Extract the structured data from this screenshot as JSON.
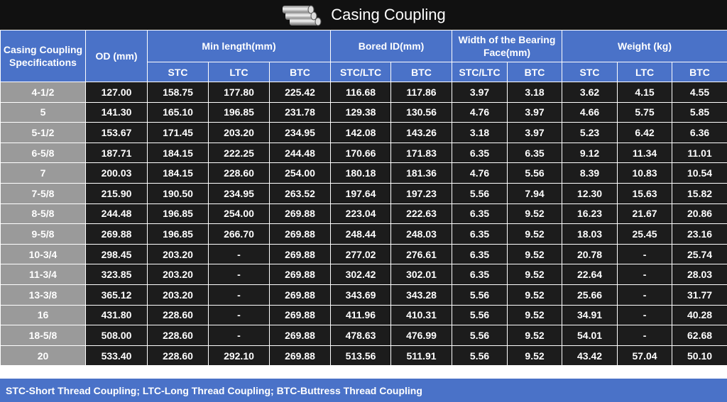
{
  "title": "Casing Coupling",
  "table": {
    "header_top": [
      "Casing Coupling Specifications",
      "OD (mm)",
      "Min length(mm)",
      "Bored ID(mm)",
      "Width of the Bearing Face(mm)",
      "Weight (kg)"
    ],
    "header_sub": [
      "STC",
      "LTC",
      "BTC",
      "STC/LTC",
      "BTC",
      "STC/LTC",
      "BTC",
      "STC",
      "LTC",
      "BTC"
    ],
    "rows": [
      [
        "4-1/2",
        "127.00",
        "158.75",
        "177.80",
        "225.42",
        "116.68",
        "117.86",
        "3.97",
        "3.18",
        "3.62",
        "4.15",
        "4.55"
      ],
      [
        "5",
        "141.30",
        "165.10",
        "196.85",
        "231.78",
        "129.38",
        "130.56",
        "4.76",
        "3.97",
        "4.66",
        "5.75",
        "5.85"
      ],
      [
        "5-1/2",
        "153.67",
        "171.45",
        "203.20",
        "234.95",
        "142.08",
        "143.26",
        "3.18",
        "3.97",
        "5.23",
        "6.42",
        "6.36"
      ],
      [
        "6-5/8",
        "187.71",
        "184.15",
        "222.25",
        "244.48",
        "170.66",
        "171.83",
        "6.35",
        "6.35",
        "9.12",
        "11.34",
        "11.01"
      ],
      [
        "7",
        "200.03",
        "184.15",
        "228.60",
        "254.00",
        "180.18",
        "181.36",
        "4.76",
        "5.56",
        "8.39",
        "10.83",
        "10.54"
      ],
      [
        "7-5/8",
        "215.90",
        "190.50",
        "234.95",
        "263.52",
        "197.64",
        "197.23",
        "5.56",
        "7.94",
        "12.30",
        "15.63",
        "15.82"
      ],
      [
        "8-5/8",
        "244.48",
        "196.85",
        "254.00",
        "269.88",
        "223.04",
        "222.63",
        "6.35",
        "9.52",
        "16.23",
        "21.67",
        "20.86"
      ],
      [
        "9-5/8",
        "269.88",
        "196.85",
        "266.70",
        "269.88",
        "248.44",
        "248.03",
        "6.35",
        "9.52",
        "18.03",
        "25.45",
        "23.16"
      ],
      [
        "10-3/4",
        "298.45",
        "203.20",
        "-",
        "269.88",
        "277.02",
        "276.61",
        "6.35",
        "9.52",
        "20.78",
        "-",
        "25.74"
      ],
      [
        "11-3/4",
        "323.85",
        "203.20",
        "-",
        "269.88",
        "302.42",
        "302.01",
        "6.35",
        "9.52",
        "22.64",
        "-",
        "28.03"
      ],
      [
        "13-3/8",
        "365.12",
        "203.20",
        "-",
        "269.88",
        "343.69",
        "343.28",
        "5.56",
        "9.52",
        "25.66",
        "-",
        "31.77"
      ],
      [
        "16",
        "431.80",
        "228.60",
        "-",
        "269.88",
        "411.96",
        "410.31",
        "5.56",
        "9.52",
        "34.91",
        "-",
        "40.28"
      ],
      [
        "18-5/8",
        "508.00",
        "228.60",
        "-",
        "269.88",
        "478.63",
        "476.99",
        "5.56",
        "9.52",
        "54.01",
        "-",
        "62.68"
      ],
      [
        "20",
        "533.40",
        "228.60",
        "292.10",
        "269.88",
        "513.56",
        "511.91",
        "5.56",
        "9.52",
        "43.42",
        "57.04",
        "50.10"
      ]
    ]
  },
  "footer": "STC-Short Thread Coupling; LTC-Long Thread Coupling; BTC-Buttress Thread Coupling"
}
